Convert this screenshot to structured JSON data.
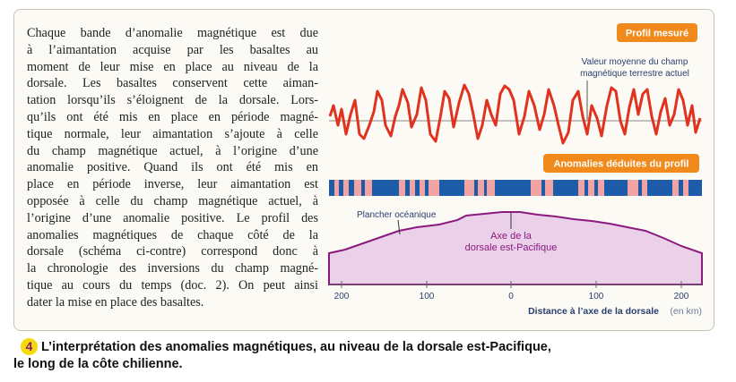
{
  "paragraph": {
    "lines": [
      "Chaque bande d’anomalie magnétique est due",
      "à l’aimantation acquise par les basaltes au",
      "moment de leur mise en place au niveau de la",
      "dorsale. Les basaltes conservent cette aiman-",
      "tation lorsqu’ils s’éloignent de la dorsale. Lors-",
      "qu’ils ont été mis en place en période magné-",
      "tique normale, leur aimantation s’ajoute à celle",
      "du champ magnétique actuel, à l’origine d’une",
      "anomalie positive. Quand ils ont été mis en",
      "place en période inverse, leur aimantation est",
      "opposée à celle du champ magnétique actuel, à",
      "l’origine d’une anomalie positive. Le profil des",
      "anomalies magnétiques de chaque côté de la",
      "dorsale (schéma ci-contre) correspond donc à",
      "la chronologie des inversions du champ magné-",
      "tique au cours du temps (doc. 2). On peut ainsi",
      "dater la mise en place des basaltes."
    ]
  },
  "diagram": {
    "profile_tab": "Profil mesuré",
    "mean_label": [
      "Valeur moyenne du champ",
      "magnétique terrestre actuel"
    ],
    "anomaly_tab": "Anomalies déduites du profil",
    "floor_label": "Plancher océanique",
    "ridge_label": [
      "Axe de la",
      "dorsale est-Pacifique"
    ],
    "ticks": [
      "200",
      "100",
      "0",
      "100",
      "200"
    ],
    "axis_title": "Distance à l’axe de la dorsale",
    "axis_unit": "(en km)"
  },
  "caption": {
    "number": "4",
    "lines": [
      "L’interprétation des anomalies magnétiques, au niveau de la dorsale est-Pacifique,",
      "le long de la côte chilienne."
    ]
  }
}
